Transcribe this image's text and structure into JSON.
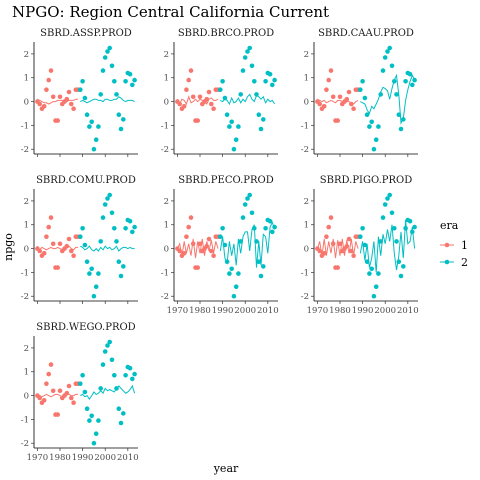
{
  "chart_data": {
    "type": "scatter",
    "title": "NPGO: Region Central California Current",
    "xlabel": "year",
    "ylabel": "npgo",
    "xlim": [
      1968.5,
      2014.5
    ],
    "ylim": [
      -2.2,
      2.5
    ],
    "x_ticks": [
      1970,
      1980,
      1990,
      2000,
      2010
    ],
    "y_ticks": [
      -2,
      -1,
      0,
      1,
      2
    ],
    "legend": {
      "title": "era",
      "placement": "right",
      "entries": [
        {
          "label": "1",
          "color": "#F8766D"
        },
        {
          "label": "2",
          "color": "#00BFC4"
        }
      ]
    },
    "points": {
      "era1": {
        "color": "#F8766D",
        "x": [
          1970,
          1971,
          1972,
          1973,
          1974,
          1975,
          1976,
          1977,
          1978,
          1979,
          1980,
          1981,
          1982,
          1983,
          1984,
          1985,
          1986,
          1987,
          1988
        ],
        "y": [
          0.0,
          -0.1,
          -0.3,
          -0.2,
          0.5,
          0.9,
          1.3,
          0.2,
          -0.8,
          -0.8,
          0.2,
          -0.1,
          0.0,
          0.1,
          0.4,
          -0.1,
          -0.3,
          0.5,
          0.5
        ]
      },
      "era2": {
        "color": "#00BFC4",
        "x": [
          1989,
          1990,
          1991,
          1992,
          1993,
          1994,
          1995,
          1996,
          1997,
          1998,
          1999,
          2000,
          2001,
          2002,
          2003,
          2004,
          2005,
          2006,
          2007,
          2008,
          2009,
          2010,
          2011,
          2012,
          2013
        ],
        "y": [
          0.5,
          0.85,
          0.15,
          -0.55,
          -1.05,
          -0.85,
          -2.0,
          -1.6,
          -1.05,
          0.3,
          1.3,
          1.85,
          2.1,
          2.25,
          1.5,
          0.85,
          0.3,
          -0.55,
          -1.15,
          -0.75,
          0.85,
          1.2,
          1.15,
          0.7,
          0.9
        ]
      }
    },
    "panels": [
      {
        "name": "SBRD.ASSP.PROD",
        "era1_line": [
          0.1,
          0.05,
          0.0,
          -0.05,
          -0.05,
          -0.1,
          -0.05,
          0.0,
          0.0,
          0.05,
          0.05,
          0.05,
          0.0,
          0.0,
          0.05,
          0.05,
          0.05,
          0.1,
          0.1
        ],
        "era2_line": [
          0.0,
          0.05,
          0.0,
          -0.05,
          0.0,
          0.05,
          0.1,
          0.1,
          0.05,
          0.05,
          0.0,
          0.1,
          0.1,
          0.05,
          0.05,
          0.1,
          0.1,
          0.2,
          0.15,
          0.05,
          0.0,
          0.05,
          0.05,
          0.05,
          0.0
        ]
      },
      {
        "name": "SBRD.BRCO.PROD",
        "era1_line": [
          0.1,
          -0.1,
          0.1,
          0.05,
          -0.1,
          0.2,
          -0.05,
          0.0,
          0.1,
          0.0,
          0.1,
          0.05,
          0.0,
          -0.1,
          0.1,
          0.15,
          0.05,
          0.05,
          0.1
        ],
        "era2_line": [
          0.05,
          0.0,
          0.1,
          0.05,
          -0.1,
          0.15,
          -0.05,
          0.0,
          0.15,
          -0.05,
          0.1,
          0.0,
          0.2,
          0.3,
          0.1,
          0.0,
          0.25,
          0.2,
          0.1,
          0.2,
          -0.05,
          0.1,
          0.0,
          0.05,
          -0.1
        ]
      },
      {
        "name": "SBRD.CAAU.PROD",
        "era1_line": [
          0.1,
          0.05,
          0.0,
          0.05,
          -0.05,
          0.0,
          0.05,
          0.0,
          -0.05,
          0.05,
          0.05,
          0.0,
          0.05,
          0.0,
          0.0,
          -0.05,
          -0.1,
          0.0,
          0.05
        ],
        "era2_line": [
          0.0,
          -0.05,
          -0.1,
          -0.35,
          -0.5,
          -0.2,
          -0.3,
          -0.1,
          0.1,
          0.4,
          0.6,
          0.55,
          0.45,
          0.1,
          0.55,
          0.9,
          1.1,
          0.3,
          -0.9,
          -0.7,
          0.05,
          0.5,
          0.85,
          1.1,
          0.9
        ]
      },
      {
        "name": "SBRD.COMU.PROD",
        "era1_line": [
          0.1,
          -0.05,
          0.05,
          0.0,
          -0.05,
          0.0,
          0.05,
          0.0,
          0.0,
          0.05,
          0.0,
          -0.05,
          0.0,
          0.05,
          0.1,
          0.0,
          -0.05,
          0.05,
          0.05
        ],
        "era2_line": [
          0.1,
          0.05,
          -0.05,
          0.0,
          0.1,
          -0.05,
          -0.1,
          0.0,
          -0.1,
          0.05,
          -0.05,
          0.1,
          0.0,
          0.05,
          -0.05,
          0.0,
          0.1,
          -0.1,
          0.0,
          0.05,
          0.05,
          0.0,
          0.05,
          0.0,
          0.0
        ]
      },
      {
        "name": "SBRD.PECO.PROD",
        "era1_line": [
          0.0,
          0.2,
          -0.3,
          0.3,
          -0.2,
          0.2,
          -0.3,
          0.4,
          -0.4,
          0.3,
          -0.2,
          0.4,
          -0.3,
          0.3,
          -0.1,
          0.35,
          -0.2,
          0.3,
          0.0
        ],
        "era2_line": [
          -0.1,
          0.5,
          -0.4,
          -0.6,
          0.3,
          -0.3,
          0.2,
          -0.7,
          0.4,
          -0.2,
          0.5,
          0.7,
          0.7,
          -0.1,
          0.8,
          1.0,
          -0.8,
          0.3,
          -0.7,
          0.6,
          0.5,
          -0.2,
          0.9,
          1.1,
          0.8
        ]
      },
      {
        "name": "SBRD.PIGO.PROD",
        "era1_line": [
          0.0,
          0.3,
          -0.3,
          0.4,
          -0.3,
          0.3,
          -0.2,
          0.4,
          -0.4,
          0.35,
          -0.3,
          0.4,
          -0.3,
          0.35,
          -0.2,
          0.4,
          -0.3,
          0.3,
          0.0
        ],
        "era2_line": [
          -0.2,
          0.3,
          -0.5,
          0.2,
          -0.8,
          -0.4,
          0.3,
          -1.0,
          0.5,
          -0.3,
          0.6,
          0.2,
          0.8,
          0.3,
          1.0,
          -0.2,
          -0.9,
          -0.3,
          0.7,
          -0.4,
          1.2,
          0.2,
          0.3,
          0.9,
          0.0
        ]
      },
      {
        "name": "SBRD.WEGO.PROD",
        "era1_line": [
          0.05,
          0.0,
          -0.05,
          0.0,
          0.05,
          0.0,
          -0.05,
          0.0,
          0.05,
          0.05,
          0.0,
          -0.05,
          0.0,
          0.05,
          0.05,
          0.0,
          0.0,
          0.05,
          0.05
        ],
        "era2_line": [
          0.0,
          0.05,
          -0.05,
          0.0,
          -0.15,
          0.0,
          0.15,
          0.05,
          0.1,
          0.2,
          0.1,
          0.3,
          0.2,
          0.25,
          0.2,
          0.15,
          0.3,
          0.4,
          0.3,
          0.2,
          0.1,
          0.15,
          0.25,
          0.4,
          0.1
        ]
      }
    ]
  }
}
